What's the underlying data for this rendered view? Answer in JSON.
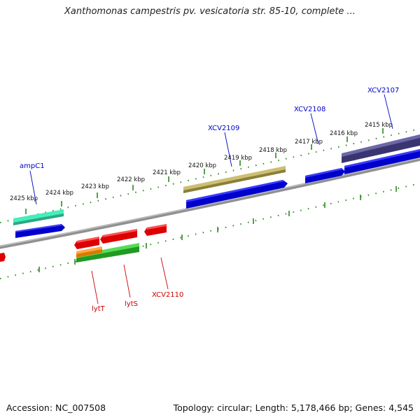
{
  "title": "Xanthomonas campestris pv. vesicatoria str. 85-10, complete ...",
  "footer": {
    "accession": "Accession: NC_007508",
    "stats": "Topology: circular; Length: 5,178,466 bp; Genes: 4,545"
  },
  "colors": {
    "background": "#ffffff",
    "backbone": "#808080",
    "tick_marks": "#2a8a1c",
    "cds_forward": "#0000ee",
    "cds_reverse": "#ee0000",
    "gene_teal": "#33ddaa",
    "gene_olive": "#b5aa5a",
    "gene_navy": "#3d3a7a",
    "gene_green": "#33bb33",
    "gene_orange": "#ff9922",
    "label_forward": "#0000cc",
    "label_reverse": "#cc0000"
  },
  "kbp_ticks": [
    "2425 kbp",
    "2424 kbp",
    "2423 kbp",
    "2422 kbp",
    "2421 kbp",
    "2420 kbp",
    "2419 kbp",
    "2418 kbp",
    "2417 kbp",
    "2416 kbp",
    "2415 kbp"
  ],
  "gene_labels_forward": [
    "ampC1",
    "XCV2109",
    "XCV2108",
    "XCV2107"
  ],
  "gene_labels_reverse": [
    "lytT",
    "lytS",
    "XCV2110"
  ]
}
